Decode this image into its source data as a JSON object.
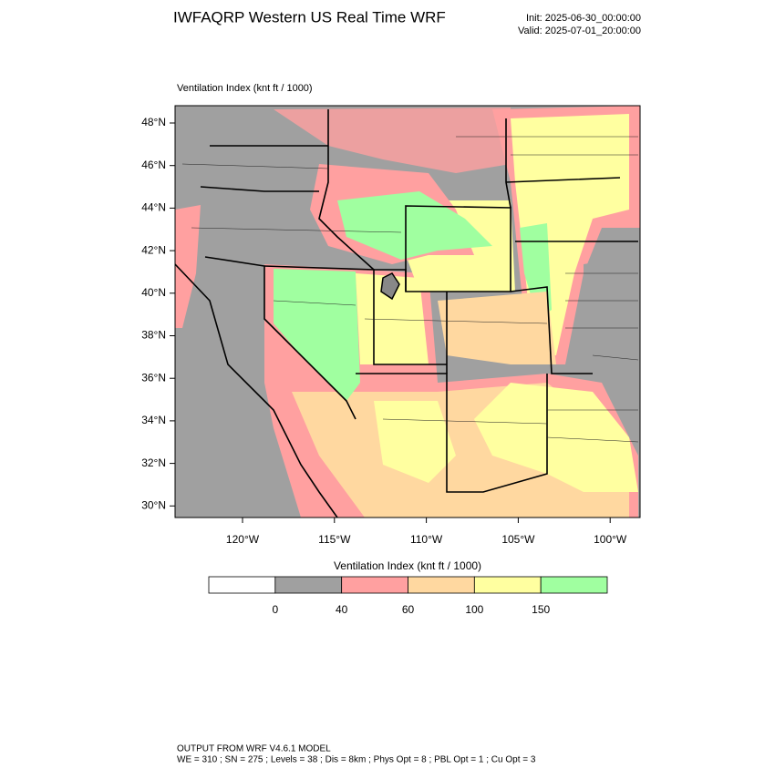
{
  "header": {
    "title": "IWFAQRP Western US Real Time WRF",
    "init": "Init: 2025-06-30_00:00:00",
    "valid": "Valid: 2025-07-01_20:00:00"
  },
  "map": {
    "field_label": "Ventilation Index   (knt ft / 1000)",
    "lat_labels": [
      "48°N",
      "46°N",
      "44°N",
      "42°N",
      "40°N",
      "38°N",
      "36°N",
      "34°N",
      "32°N",
      "30°N"
    ],
    "lon_labels": [
      "120°W",
      "115°W",
      "110°W",
      "105°W",
      "100°W"
    ]
  },
  "colorbar": {
    "title": "Ventilation Index   (knt ft / 1000)",
    "levels": [
      0,
      40,
      60,
      100,
      150
    ],
    "colors": [
      "#ffffff",
      "#a0a0a0",
      "#ffa0a0",
      "#ffd8a0",
      "#ffffa0",
      "#a0ffa0"
    ]
  },
  "footer": {
    "line1": "OUTPUT FROM WRF V4.6.1 MODEL",
    "line2": "WE = 310 ; SN = 275 ; Levels = 38 ; Dis = 8km ; Phys Opt = 8 ; PBL Opt = 1 ; Cu Opt = 3"
  }
}
